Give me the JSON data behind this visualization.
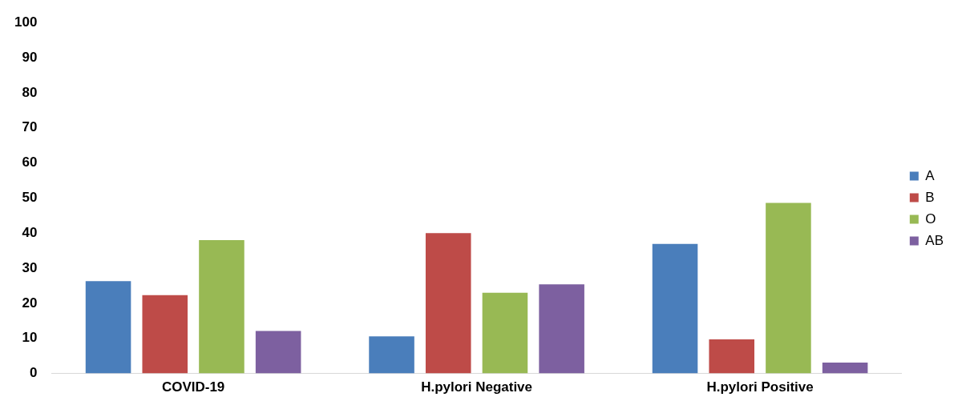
{
  "chart_data": {
    "type": "bar",
    "categories": [
      "COVID-19",
      "H.pylori Negative",
      "H.pylori Positive"
    ],
    "series": [
      {
        "name": "A",
        "color": "#4a7ebb",
        "values": [
          26.3,
          10.6,
          36.9
        ]
      },
      {
        "name": "B",
        "color": "#be4b48",
        "values": [
          22.3,
          40.0,
          9.7
        ]
      },
      {
        "name": "O",
        "color": "#98b954",
        "values": [
          38.0,
          23.0,
          48.6
        ]
      },
      {
        "name": "AB",
        "color": "#7d60a0",
        "values": [
          12.1,
          25.4,
          3.1
        ]
      }
    ],
    "ylim": [
      0,
      100
    ],
    "yticks": [
      0,
      10,
      20,
      30,
      40,
      50,
      60,
      70,
      80,
      90,
      100
    ],
    "grid": false,
    "legend": "right"
  }
}
